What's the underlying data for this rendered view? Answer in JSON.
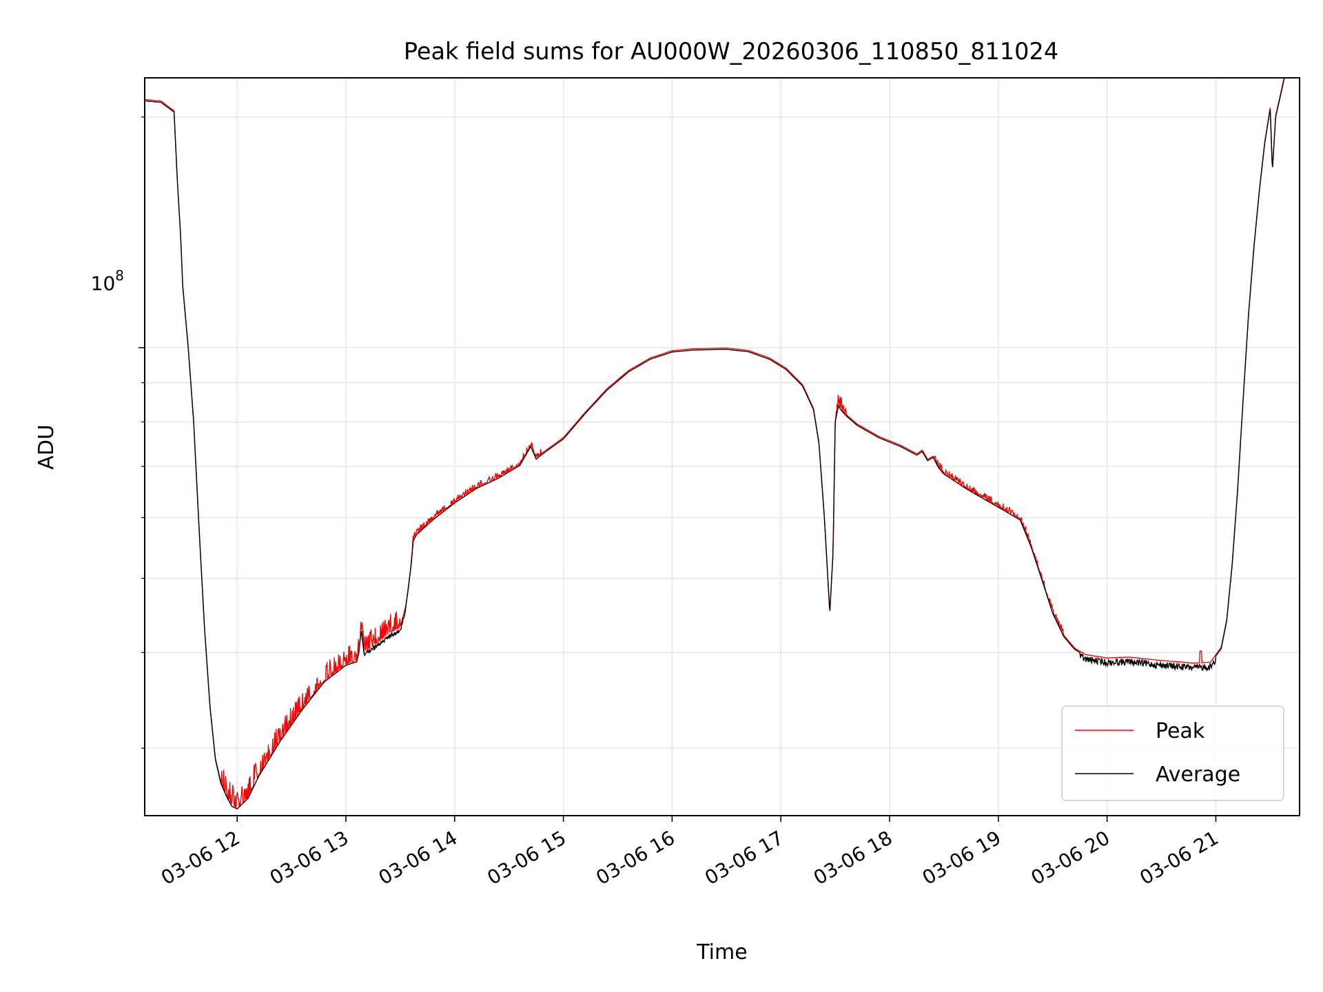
{
  "chart_data": {
    "type": "line",
    "title": "Peak field sums for AU000W_20260306_110850_811024",
    "xlabel": "Time",
    "ylabel": "ADU",
    "yscale": "log",
    "xlim": [
      11.15,
      21.77
    ],
    "ylim": [
      24500000,
      225000000
    ],
    "y_major_tick_label": {
      "base": "10",
      "exponent": "8",
      "value": 100000000
    },
    "y_minor_ticks": [
      30000000,
      40000000,
      50000000,
      60000000,
      70000000,
      80000000,
      90000000,
      200000000
    ],
    "x_ticks": [
      {
        "value": 12,
        "label": "03-06 12"
      },
      {
        "value": 13,
        "label": "03-06 13"
      },
      {
        "value": 14,
        "label": "03-06 14"
      },
      {
        "value": 15,
        "label": "03-06 15"
      },
      {
        "value": 16,
        "label": "03-06 16"
      },
      {
        "value": 17,
        "label": "03-06 17"
      },
      {
        "value": 18,
        "label": "03-06 18"
      },
      {
        "value": 19,
        "label": "03-06 19"
      },
      {
        "value": 20,
        "label": "03-06 20"
      },
      {
        "value": 21,
        "label": "03-06 21"
      }
    ],
    "grid": true,
    "legend_position": "lower-right",
    "series": [
      {
        "name": "Peak",
        "color": "#ff0000",
        "note": "Peak values follow the Average curve with intermittent upward spikes",
        "spike_intervals": [
          {
            "from": 11.75,
            "to": 11.6,
            "max_ratio": 1.0
          },
          {
            "from": 11.85,
            "to": 12.25,
            "max_ratio": 1.07
          },
          {
            "from": 12.25,
            "to": 13.5,
            "max_ratio": 1.06
          },
          {
            "from": 13.6,
            "to": 14.8,
            "max_ratio": 1.02
          },
          {
            "from": 17.5,
            "to": 17.6,
            "max_ratio": 1.05
          },
          {
            "from": 18.4,
            "to": 19.6,
            "max_ratio": 1.02
          }
        ]
      },
      {
        "name": "Average",
        "color": "#000000",
        "x": [
          11.15,
          11.3,
          11.42,
          11.45,
          11.48,
          11.5,
          11.55,
          11.6,
          11.65,
          11.7,
          11.75,
          11.8,
          11.85,
          11.9,
          11.95,
          12.0,
          12.1,
          12.2,
          12.4,
          12.6,
          12.8,
          13.0,
          13.1,
          13.12,
          13.14,
          13.17,
          13.2,
          13.3,
          13.4,
          13.5,
          13.55,
          13.57,
          13.6,
          13.62,
          13.65,
          13.8,
          14.0,
          14.2,
          14.4,
          14.6,
          14.7,
          14.75,
          14.8,
          15.0,
          15.2,
          15.4,
          15.6,
          15.8,
          16.0,
          16.2,
          16.5,
          16.7,
          16.9,
          17.05,
          17.2,
          17.3,
          17.35,
          17.4,
          17.45,
          17.48,
          17.5,
          17.53,
          17.55,
          17.6,
          17.7,
          17.9,
          18.1,
          18.25,
          18.3,
          18.35,
          18.4,
          18.45,
          18.5,
          18.7,
          19.0,
          19.2,
          19.3,
          19.4,
          19.5,
          19.6,
          19.7,
          19.8,
          20.0,
          20.2,
          20.5,
          20.8,
          20.95,
          21.05,
          21.1,
          21.15,
          21.2,
          21.25,
          21.3,
          21.35,
          21.4,
          21.45,
          21.5,
          21.52,
          21.55,
          21.6,
          21.63,
          21.65,
          21.77
        ],
        "values": [
          210000000,
          209000000,
          203000000,
          165000000,
          140000000,
          120000000,
          100000000,
          80000000,
          58000000,
          43000000,
          34000000,
          29000000,
          27000000,
          26000000,
          25200000,
          25000000,
          25800000,
          27600000,
          30700000,
          33700000,
          36600000,
          38500000,
          38900000,
          40000000,
          42800000,
          39600000,
          40300000,
          41200000,
          42300000,
          43000000,
          45800000,
          48000000,
          52000000,
          56000000,
          57000000,
          59600000,
          62700000,
          65500000,
          67500000,
          70200000,
          74300000,
          71500000,
          72500000,
          76000000,
          82000000,
          88000000,
          93000000,
          96600000,
          98700000,
          99300000,
          99500000,
          98800000,
          96500000,
          93600000,
          89100000,
          83000000,
          75000000,
          60000000,
          45000000,
          54000000,
          80000000,
          84000000,
          83000000,
          81500000,
          79200000,
          76300000,
          74300000,
          72400000,
          73200000,
          71200000,
          71900000,
          69700000,
          68400000,
          65500000,
          61900000,
          59600000,
          55000000,
          49800000,
          45000000,
          42000000,
          40400000,
          39600000,
          39200000,
          39300000,
          38900000,
          38600000,
          38700000,
          40500000,
          44000000,
          52000000,
          65000000,
          85000000,
          110000000,
          135000000,
          160000000,
          185000000,
          205000000,
          170000000,
          200000000,
          215000000,
          225000000,
          228000000,
          228000000
        ]
      }
    ]
  }
}
